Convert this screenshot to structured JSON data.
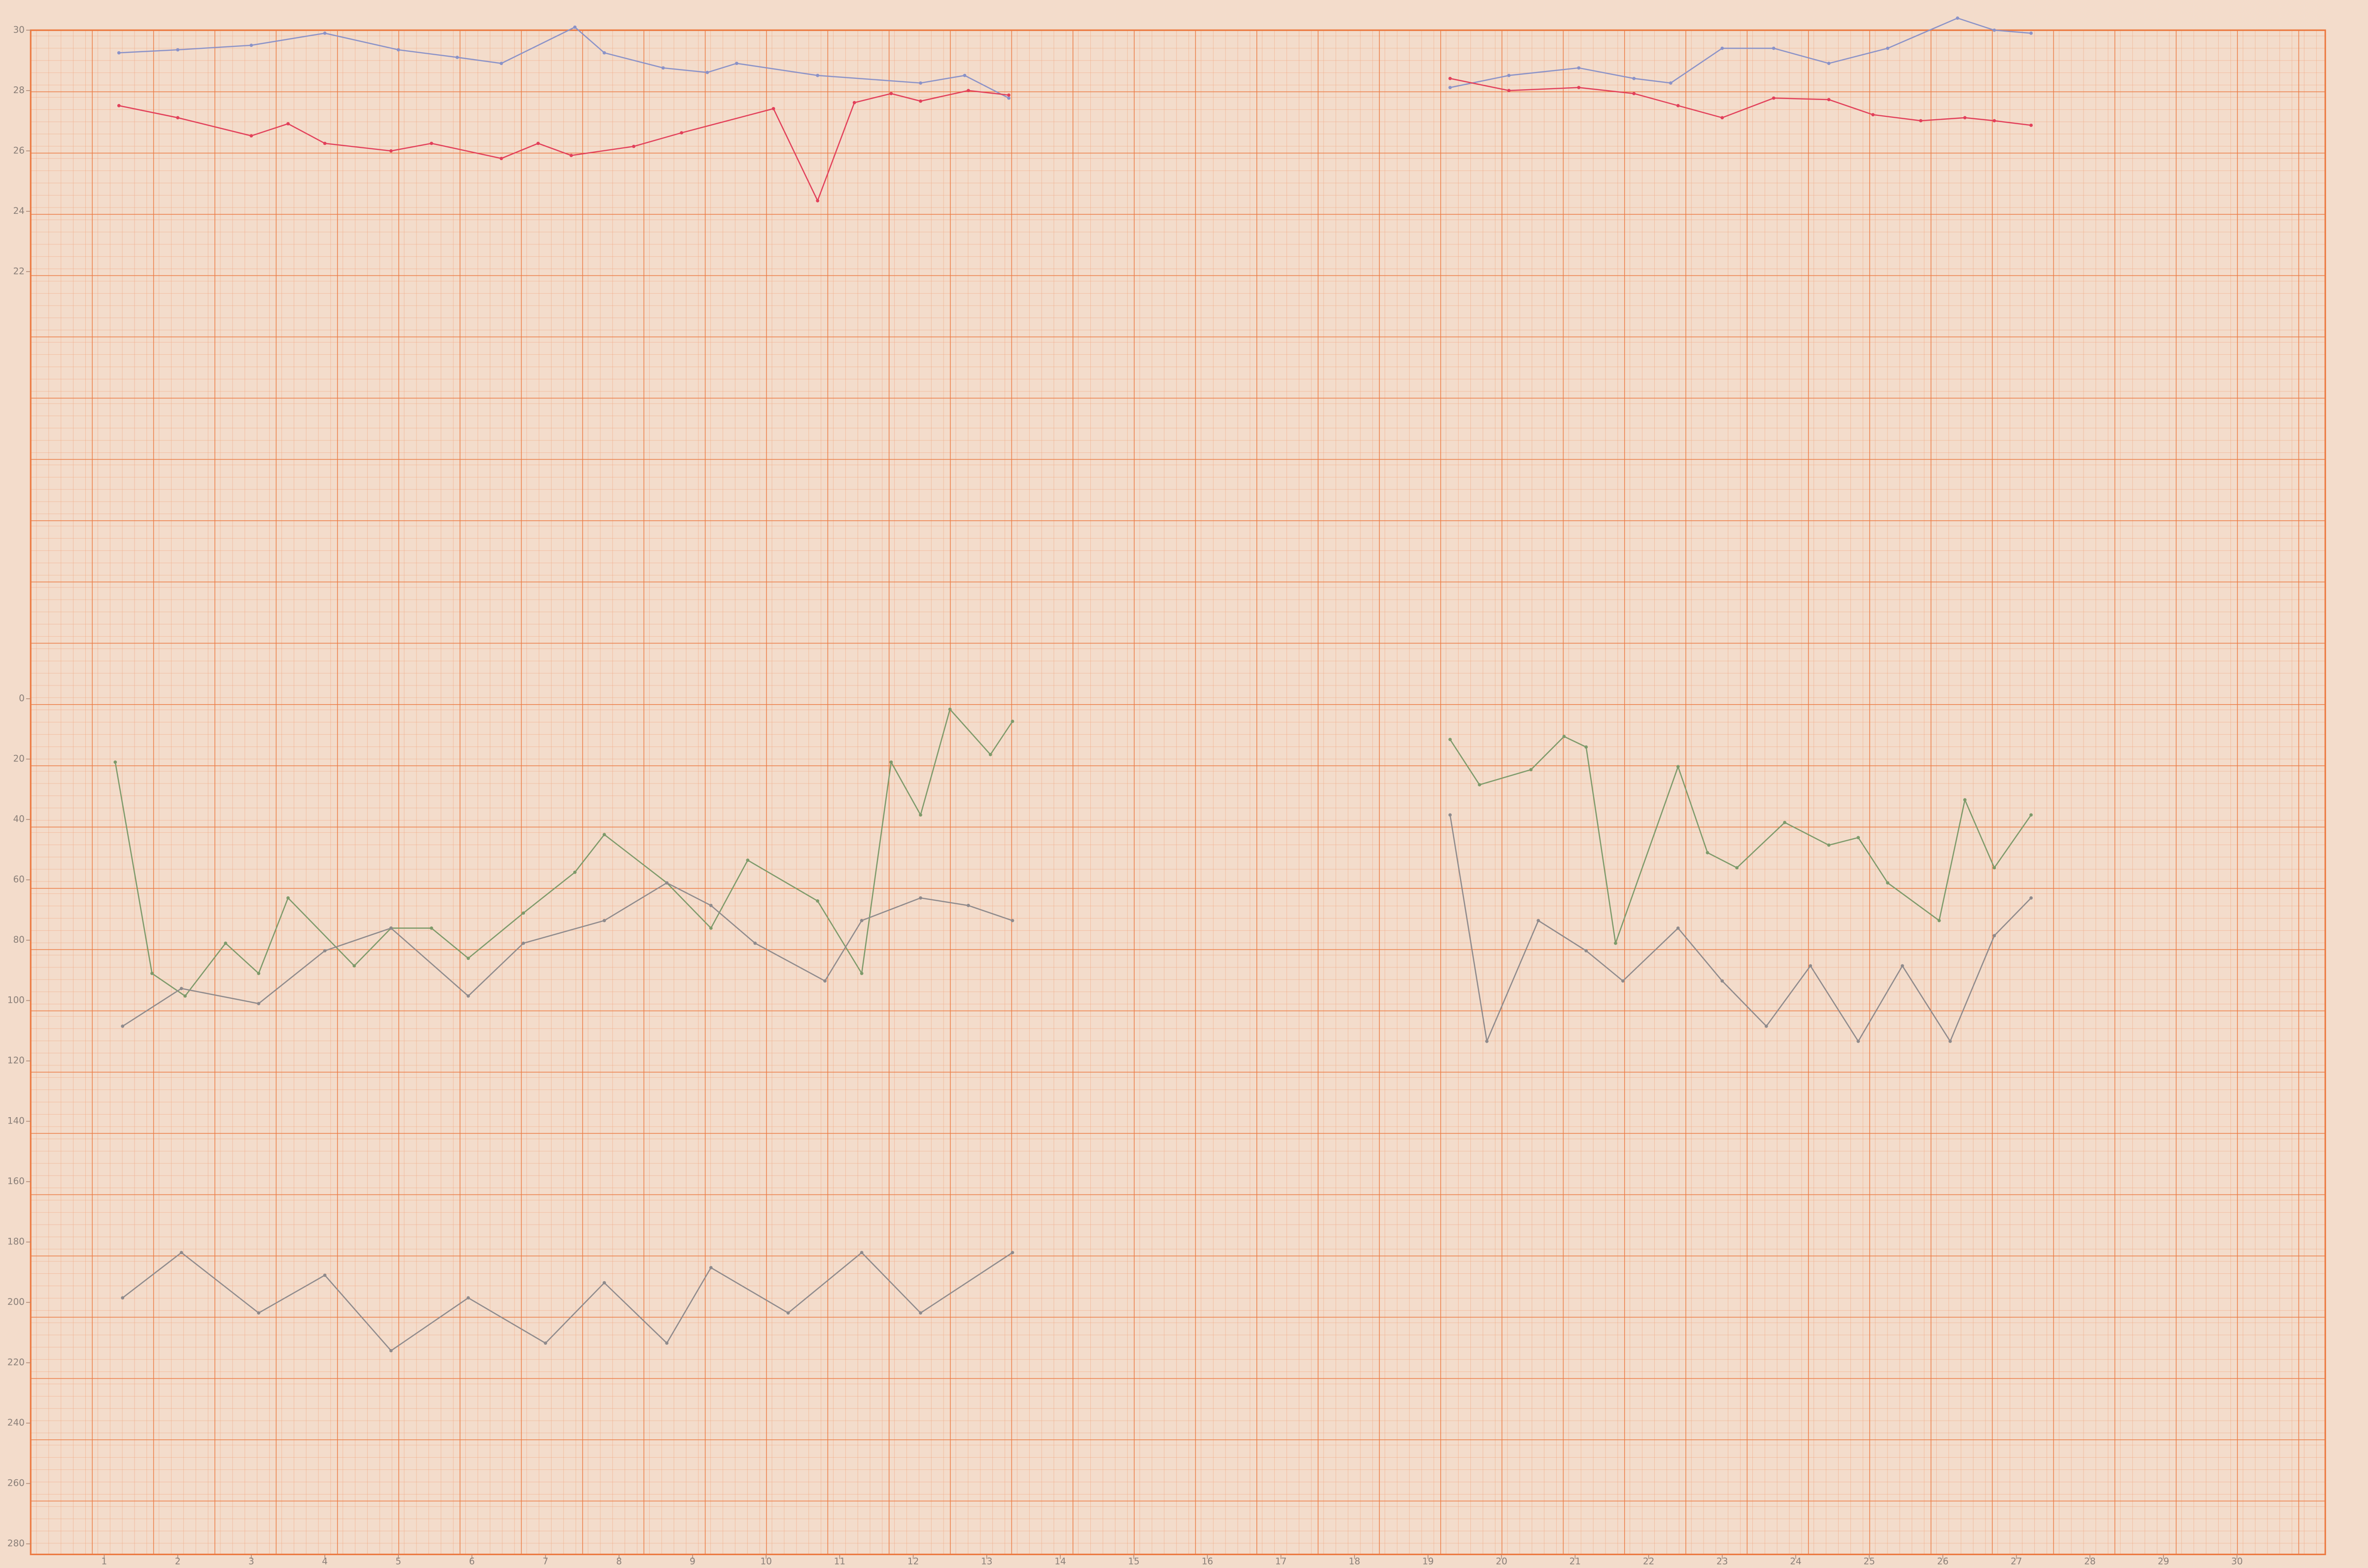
{
  "chart_data": [
    {
      "type": "line",
      "xlim": [
        0,
        31.2
      ],
      "ylim": [
        22,
        30
      ],
      "yticks": [
        22,
        24,
        26,
        28,
        30
      ],
      "series": [
        {
          "color": "#8a92c8",
          "x": [
            1.2,
            2,
            3,
            4,
            5,
            5.8,
            6.4,
            7.4,
            7.8,
            8.6,
            9.2,
            9.6,
            10.7,
            12.1,
            12.7,
            13.3,
            null,
            19.3,
            20.1,
            21.05,
            21.8,
            22.3,
            23,
            23.7,
            24.45,
            25.25,
            26.2,
            26.7,
            27.2
          ],
          "values": [
            29.25,
            29.35,
            29.5,
            29.9,
            29.35,
            29.1,
            28.9,
            30.1,
            29.25,
            28.75,
            28.6,
            28.9,
            28.5,
            28.25,
            28.5,
            27.75,
            null,
            28.1,
            28.5,
            28.75,
            28.4,
            28.25,
            29.4,
            29.4,
            28.9,
            29.4,
            30.4,
            30,
            29.9
          ]
        },
        {
          "color": "#e2405a",
          "x": [
            1.2,
            2,
            3,
            3.5,
            4,
            4.9,
            5.45,
            6.4,
            6.9,
            7.35,
            8.2,
            8.85,
            10.1,
            10.7,
            11.2,
            11.7,
            12.1,
            12.75,
            13.3,
            null,
            19.3,
            20.1,
            21.05,
            21.8,
            22.4,
            23,
            23.7,
            24.45,
            25.05,
            25.7,
            26.3,
            26.7,
            27.2
          ],
          "values": [
            27.5,
            27.1,
            26.5,
            26.9,
            26.25,
            26,
            26.25,
            25.75,
            26.25,
            25.85,
            26.15,
            26.6,
            27.4,
            24.35,
            27.6,
            27.9,
            27.65,
            28,
            27.85,
            null,
            28.4,
            28,
            28.1,
            27.9,
            27.5,
            27.1,
            27.75,
            27.7,
            27.2,
            27,
            27.1,
            27,
            26.85
          ]
        }
      ]
    },
    {
      "type": "line",
      "xlim": [
        0,
        31.2
      ],
      "ylim": [
        0,
        280
      ],
      "y_inverted": true,
      "yticks": [
        0,
        20,
        40,
        60,
        80,
        100,
        120,
        140,
        160,
        180,
        200,
        220,
        240,
        260,
        280
      ],
      "xticks": [
        1,
        2,
        3,
        4,
        5,
        6,
        7,
        8,
        9,
        10,
        11,
        12,
        13,
        14,
        15,
        16,
        17,
        18,
        19,
        20,
        21,
        22,
        23,
        24,
        25,
        26,
        27,
        28,
        29,
        30
      ],
      "series": [
        {
          "color": "#7d9a6a",
          "x": [
            1.15,
            1.65,
            2.1,
            2.65,
            3.1,
            3.5,
            4.4,
            4.9,
            5.45,
            5.95,
            6.7,
            7.4,
            7.8,
            8.65,
            9.25,
            9.75,
            10.7,
            11.3,
            11.7,
            12.1,
            12.5,
            13.05,
            13.35,
            null,
            19.3,
            19.7,
            20.4,
            20.85,
            21.15,
            21.55,
            22.4,
            22.8,
            23.2,
            23.85,
            24.45,
            24.85,
            25.25,
            25.95,
            26.3,
            26.7,
            27.2
          ],
          "values": [
            21,
            91,
            98.5,
            81,
            91,
            66,
            88.5,
            76,
            76,
            86,
            71,
            57.5,
            45,
            61,
            76,
            53.5,
            67,
            91,
            21,
            38.5,
            3.5,
            18.5,
            7.5,
            null,
            13.5,
            28.5,
            23.5,
            12.5,
            16,
            81,
            22.5,
            51,
            56,
            41,
            48.5,
            46,
            61,
            73.5,
            33.5,
            56,
            38.5
          ]
        },
        {
          "color": "#8e8a8c",
          "x": [
            1.25,
            2.05,
            3.1,
            4,
            4.9,
            5.95,
            6.7,
            7.8,
            8.65,
            9.25,
            9.85,
            10.8,
            11.3,
            12.1,
            12.75,
            13.35,
            null,
            19.3,
            19.8,
            20.5,
            21.15,
            21.65,
            22.4,
            23,
            23.6,
            24.2,
            24.85,
            25.45,
            26.1,
            26.7,
            27.2
          ],
          "values": [
            108.5,
            96,
            101,
            83.5,
            76,
            98.5,
            81,
            73.5,
            61,
            68.5,
            81,
            93.5,
            73.5,
            66,
            68.5,
            73.5,
            null,
            38.5,
            113.5,
            73.5,
            83.5,
            93.5,
            76,
            93.5,
            108.5,
            88.5,
            113.5,
            88.5,
            113.5,
            78.5,
            66
          ]
        },
        {
          "color": "#8e8a8c",
          "x": [
            1.25,
            2.05,
            3.1,
            4,
            4.9,
            5.95,
            7,
            7.8,
            8.65,
            9.25,
            10.3,
            11.3,
            12.1,
            13.35
          ],
          "values": [
            198.5,
            183.5,
            203.5,
            191,
            216,
            198.5,
            213.5,
            193.5,
            213.5,
            188.5,
            203.5,
            183.5,
            203.5,
            183.5
          ]
        }
      ]
    }
  ]
}
